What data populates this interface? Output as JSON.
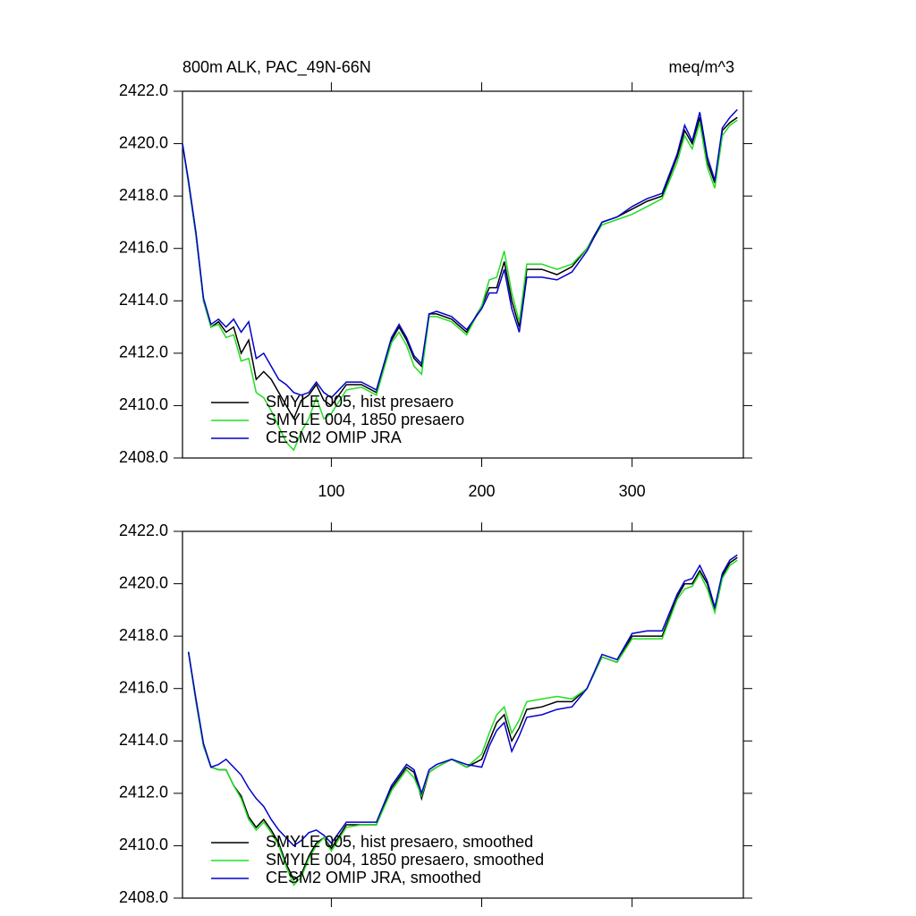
{
  "chart_data": [
    {
      "type": "line",
      "title": "800m ALK, PAC_49N-66N",
      "units": "meq/m^3",
      "x": [
        1,
        5,
        10,
        15,
        20,
        25,
        30,
        35,
        40,
        45,
        50,
        55,
        60,
        65,
        70,
        75,
        80,
        85,
        90,
        95,
        100,
        110,
        120,
        130,
        140,
        145,
        150,
        155,
        160,
        165,
        170,
        180,
        190,
        200,
        205,
        210,
        215,
        220,
        225,
        230,
        240,
        250,
        260,
        270,
        280,
        290,
        300,
        310,
        320,
        330,
        335,
        340,
        345,
        350,
        355,
        360,
        365,
        370
      ],
      "series": [
        {
          "name": "SMYLE 005, hist presaero",
          "color": "#000000",
          "values": [
            2420.0,
            2418.5,
            2416.5,
            2414.0,
            2413.0,
            2413.2,
            2412.8,
            2413.0,
            2412.0,
            2412.5,
            2411.0,
            2411.3,
            2411.0,
            2410.5,
            2410.0,
            2409.5,
            2410.2,
            2410.4,
            2410.8,
            2410.2,
            2410.0,
            2410.8,
            2410.8,
            2410.5,
            2412.5,
            2413.0,
            2412.5,
            2411.8,
            2411.5,
            2413.5,
            2413.5,
            2413.3,
            2412.8,
            2413.8,
            2414.5,
            2414.5,
            2415.5,
            2414.0,
            2413.0,
            2415.2,
            2415.2,
            2415.0,
            2415.3,
            2416.0,
            2417.0,
            2417.2,
            2417.5,
            2417.8,
            2418.0,
            2419.5,
            2420.5,
            2420.0,
            2421.0,
            2419.3,
            2418.5,
            2420.5,
            2420.8,
            2421.0
          ]
        },
        {
          "name": "SMYLE 004, 1850 presaero",
          "color": "#22dd22",
          "values": [
            2420.0,
            2418.5,
            2416.5,
            2414.0,
            2413.0,
            2413.1,
            2412.6,
            2412.7,
            2411.7,
            2411.8,
            2410.5,
            2410.3,
            2409.8,
            2409.2,
            2408.6,
            2408.3,
            2409.0,
            2409.5,
            2410.3,
            2409.5,
            2409.7,
            2410.6,
            2410.7,
            2410.4,
            2412.4,
            2412.8,
            2412.3,
            2411.5,
            2411.2,
            2413.4,
            2413.4,
            2413.2,
            2412.7,
            2413.8,
            2414.8,
            2414.9,
            2415.9,
            2414.3,
            2413.2,
            2415.4,
            2415.4,
            2415.2,
            2415.4,
            2416.0,
            2416.9,
            2417.1,
            2417.3,
            2417.6,
            2417.9,
            2419.3,
            2420.3,
            2419.8,
            2420.8,
            2419.1,
            2418.3,
            2420.3,
            2420.7,
            2420.9
          ]
        },
        {
          "name": "CESM2 OMIP JRA",
          "color": "#0000cc",
          "values": [
            2420.0,
            2418.6,
            2416.6,
            2414.1,
            2413.1,
            2413.3,
            2413.0,
            2413.3,
            2412.8,
            2413.2,
            2411.8,
            2412.0,
            2411.5,
            2411.0,
            2410.8,
            2410.5,
            2410.4,
            2410.5,
            2410.9,
            2410.5,
            2410.3,
            2410.9,
            2410.9,
            2410.6,
            2412.6,
            2413.1,
            2412.6,
            2411.9,
            2411.6,
            2413.5,
            2413.6,
            2413.4,
            2412.9,
            2413.7,
            2414.3,
            2414.3,
            2415.2,
            2413.7,
            2412.8,
            2414.9,
            2414.9,
            2414.8,
            2415.1,
            2415.9,
            2417.0,
            2417.2,
            2417.6,
            2417.9,
            2418.1,
            2419.6,
            2420.7,
            2420.1,
            2421.2,
            2419.5,
            2418.6,
            2420.6,
            2421.0,
            2421.3
          ]
        }
      ],
      "xlim": [
        1,
        374
      ],
      "xticks": [
        100,
        200,
        300
      ],
      "xtick_labels": true,
      "ylim": [
        2408,
        2422
      ],
      "yticks": [
        {
          "value": 2408,
          "label": "2408.0"
        },
        {
          "value": 2410,
          "label": "2410.0"
        },
        {
          "value": 2412,
          "label": "2412.0"
        },
        {
          "value": 2414,
          "label": "2414.0"
        },
        {
          "value": 2416,
          "label": "2416.0"
        },
        {
          "value": 2418,
          "label": "2418.0"
        },
        {
          "value": 2420,
          "label": "2420.0"
        },
        {
          "value": 2422,
          "label": "2422.0"
        }
      ],
      "legend": "lower left"
    },
    {
      "type": "line",
      "x": [
        5,
        10,
        15,
        20,
        25,
        30,
        35,
        40,
        45,
        50,
        55,
        60,
        65,
        70,
        75,
        80,
        85,
        90,
        95,
        100,
        110,
        120,
        130,
        140,
        145,
        150,
        155,
        160,
        165,
        170,
        180,
        190,
        200,
        205,
        210,
        215,
        220,
        225,
        230,
        240,
        250,
        260,
        270,
        280,
        290,
        300,
        310,
        320,
        330,
        335,
        340,
        345,
        350,
        355,
        360,
        365,
        370
      ],
      "series": [
        {
          "name": "SMYLE 005, hist presaero, smoothed",
          "color": "#000000",
          "values": [
            2417.4,
            2415.5,
            2413.8,
            2413.0,
            2412.9,
            2412.9,
            2412.3,
            2411.9,
            2411.1,
            2410.7,
            2411.0,
            2410.6,
            2410.1,
            2409.3,
            2408.7,
            2408.9,
            2409.6,
            2410.1,
            2410.3,
            2409.9,
            2410.8,
            2410.8,
            2410.8,
            2412.2,
            2412.6,
            2413.0,
            2412.8,
            2411.8,
            2412.8,
            2413.0,
            2413.3,
            2413.0,
            2413.3,
            2414.0,
            2414.7,
            2415.0,
            2414.0,
            2414.5,
            2415.2,
            2415.3,
            2415.5,
            2415.5,
            2416.0,
            2417.2,
            2417.0,
            2418.0,
            2418.0,
            2418.0,
            2419.5,
            2420.0,
            2420.0,
            2420.5,
            2420.0,
            2419.0,
            2420.3,
            2420.8,
            2421.0
          ]
        },
        {
          "name": "SMYLE 004, 1850 presaero, smoothed",
          "color": "#22dd22",
          "values": [
            2417.4,
            2415.5,
            2413.8,
            2413.0,
            2412.9,
            2412.9,
            2412.3,
            2411.8,
            2411.0,
            2410.6,
            2410.9,
            2410.5,
            2410.0,
            2409.2,
            2408.5,
            2408.8,
            2409.5,
            2410.0,
            2410.3,
            2409.8,
            2410.7,
            2410.8,
            2410.8,
            2412.1,
            2412.5,
            2412.9,
            2412.6,
            2411.9,
            2412.8,
            2413.0,
            2413.3,
            2413.0,
            2413.5,
            2414.3,
            2415.0,
            2415.3,
            2414.3,
            2414.8,
            2415.5,
            2415.6,
            2415.7,
            2415.6,
            2416.0,
            2417.2,
            2417.0,
            2417.9,
            2417.9,
            2417.9,
            2419.4,
            2419.8,
            2419.9,
            2420.4,
            2419.8,
            2418.9,
            2420.2,
            2420.7,
            2420.9
          ]
        },
        {
          "name": "CESM2 OMIP JRA, smoothed",
          "color": "#0000cc",
          "values": [
            2417.4,
            2415.6,
            2413.9,
            2413.0,
            2413.1,
            2413.3,
            2413.0,
            2412.7,
            2412.2,
            2411.8,
            2411.5,
            2411.0,
            2410.6,
            2410.3,
            2410.0,
            2410.2,
            2410.5,
            2410.6,
            2410.4,
            2410.1,
            2410.9,
            2410.9,
            2410.9,
            2412.3,
            2412.7,
            2413.1,
            2412.9,
            2412.0,
            2412.9,
            2413.1,
            2413.3,
            2413.1,
            2413.0,
            2413.8,
            2414.4,
            2414.7,
            2413.6,
            2414.2,
            2414.9,
            2415.0,
            2415.2,
            2415.3,
            2416.0,
            2417.3,
            2417.1,
            2418.1,
            2418.2,
            2418.2,
            2419.6,
            2420.1,
            2420.2,
            2420.7,
            2420.1,
            2419.1,
            2420.4,
            2420.9,
            2421.1
          ]
        }
      ],
      "xlim": [
        1,
        374
      ],
      "xticks": [
        100,
        200,
        300
      ],
      "xtick_labels": false,
      "ylim": [
        2408,
        2422
      ],
      "yticks": [
        {
          "value": 2408,
          "label": "2408.0"
        },
        {
          "value": 2410,
          "label": "2410.0"
        },
        {
          "value": 2412,
          "label": "2412.0"
        },
        {
          "value": 2414,
          "label": "2414.0"
        },
        {
          "value": 2416,
          "label": "2416.0"
        },
        {
          "value": 2418,
          "label": "2418.0"
        },
        {
          "value": 2420,
          "label": "2420.0"
        },
        {
          "value": 2422,
          "label": "2422.0"
        }
      ],
      "legend": "lower left"
    }
  ]
}
